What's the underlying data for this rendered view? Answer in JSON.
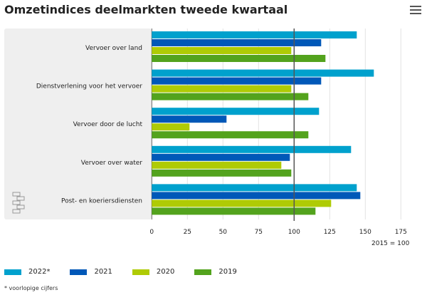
{
  "title": "Omzetindices deelmarkten tweede kwartaal",
  "chart_data": {
    "type": "bar",
    "orientation": "horizontal",
    "title": "Omzetindices deelmarkten tweede kwartaal",
    "categories": [
      "Vervoer over land",
      "Dienstverlening voor het vervoer",
      "Vervoer door de lucht",
      "Vervoer over water",
      "Post- en koeriersdiensten"
    ],
    "series": [
      {
        "name": "2022*",
        "color": "#00a1cd",
        "values": [
          144,
          156,
          117.5,
          140,
          144
        ]
      },
      {
        "name": "2021",
        "color": "#0058b8",
        "values": [
          119,
          119,
          52.5,
          97,
          146.5
        ]
      },
      {
        "name": "2020",
        "color": "#afcb05",
        "values": [
          98,
          98,
          26.5,
          91,
          126
        ]
      },
      {
        "name": "2019",
        "color": "#53a31d",
        "values": [
          122,
          110,
          110,
          98,
          115
        ]
      }
    ],
    "xlim": [
      0,
      175
    ],
    "xticks": [
      0,
      25,
      50,
      75,
      100,
      125,
      150,
      175
    ],
    "reference_line": 100,
    "xlabel": "2015 = 100",
    "grid": true,
    "legend": "bottom",
    "note": "* voorlopige cijfers"
  }
}
